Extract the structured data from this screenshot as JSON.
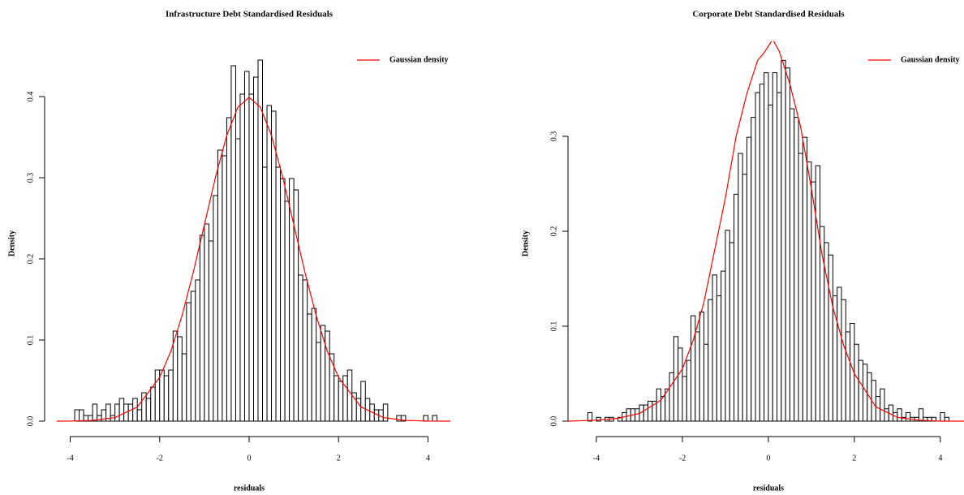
{
  "chart_data": [
    {
      "type": "histogram",
      "title": "Infrastructure Debt Standardised Residuals",
      "xlabel": "residuals",
      "ylabel": "Density",
      "color": "#000000",
      "bins": [
        -3.9,
        -3.8,
        -3.7,
        -3.6,
        -3.5,
        -3.4,
        -3.3,
        -3.2,
        -3.1,
        -3.0,
        -2.9,
        -2.8,
        -2.7,
        -2.6,
        -2.5,
        -2.4,
        -2.3,
        -2.2,
        -2.1,
        -2.0,
        -1.9,
        -1.8,
        -1.7,
        -1.6,
        -1.5,
        -1.4,
        -1.3,
        -1.2,
        -1.1,
        -1.0,
        -0.9,
        -0.8,
        -0.7,
        -0.6,
        -0.5,
        -0.4,
        -0.3,
        -0.2,
        -0.1,
        0,
        0.1,
        0.2,
        0.3,
        0.4,
        0.5,
        0.6,
        0.7,
        0.8,
        0.9,
        1.0,
        1.1,
        1.2,
        1.3,
        1.4,
        1.5,
        1.6,
        1.7,
        1.8,
        1.9,
        2.0,
        2.1,
        2.2,
        2.3,
        2.4,
        2.5,
        2.6,
        2.7,
        2.8,
        2.9,
        3.0,
        3.1,
        3.2,
        3.3,
        3.4,
        3.5,
        3.6,
        3.7,
        3.8,
        3.9,
        4.0,
        4.1,
        4.2
      ],
      "values": [
        0.014,
        0.014,
        0.007,
        0.007,
        0.021,
        0.007,
        0.014,
        0.021,
        0.007,
        0.021,
        0.028,
        0.021,
        0.021,
        0.028,
        0.014,
        0.035,
        0.028,
        0.042,
        0.063,
        0.063,
        0.056,
        0.063,
        0.111,
        0.104,
        0.083,
        0.146,
        0.16,
        0.174,
        0.229,
        0.243,
        0.222,
        0.278,
        0.334,
        0.327,
        0.374,
        0.438,
        0.348,
        0.403,
        0.431,
        0.403,
        0.424,
        0.445,
        0.313,
        0.389,
        0.382,
        0.313,
        0.299,
        0.271,
        0.299,
        0.285,
        0.18,
        0.174,
        0.132,
        0.139,
        0.097,
        0.118,
        0.111,
        0.083,
        0.056,
        0.049,
        0.056,
        0.063,
        0.035,
        0.028,
        0.049,
        0.028,
        0.021,
        0.014,
        0.014,
        0.021,
        0,
        0,
        0.007,
        0.007,
        0,
        0,
        0,
        0,
        0.007,
        0,
        0.007
      ],
      "series": [
        {
          "name": "Gaussian density",
          "color": "#ff0000",
          "x": [
            -4.3,
            -4,
            -3.5,
            -3,
            -2.5,
            -2,
            -1.75,
            -1.5,
            -1.25,
            -1,
            -0.75,
            -0.5,
            -0.25,
            0,
            0.25,
            0.5,
            0.75,
            1,
            1.25,
            1.5,
            1.75,
            2,
            2.5,
            3,
            3.5,
            4,
            4.5
          ],
          "values": [
            0,
            0.0001,
            0.0009,
            0.0044,
            0.0175,
            0.054,
            0.086,
            0.13,
            0.183,
            0.242,
            0.301,
            0.352,
            0.387,
            0.399,
            0.387,
            0.352,
            0.301,
            0.242,
            0.183,
            0.13,
            0.086,
            0.054,
            0.0175,
            0.0044,
            0.0009,
            0.0001,
            0
          ]
        }
      ],
      "xlim": [
        -4.3,
        4.5
      ],
      "ylim": [
        -0.018,
        0.468
      ],
      "xticks": [
        -4,
        -2,
        0,
        2,
        4
      ],
      "yticks": [
        {
          "value": 0,
          "label": "0.0"
        },
        0.1,
        0.2,
        0.3,
        0.4
      ],
      "legend": "upper right"
    },
    {
      "type": "histogram",
      "title": "Corporate Debt Standardised Residuals",
      "xlabel": "residuals",
      "ylabel": "Density",
      "color": "#000000",
      "bins": [
        -4.2,
        -4.1,
        -4.0,
        -3.9,
        -3.8,
        -3.7,
        -3.6,
        -3.5,
        -3.4,
        -3.3,
        -3.2,
        -3.1,
        -3.0,
        -2.9,
        -2.8,
        -2.7,
        -2.6,
        -2.5,
        -2.4,
        -2.3,
        -2.2,
        -2.1,
        -2.0,
        -1.9,
        -1.8,
        -1.7,
        -1.6,
        -1.5,
        -1.4,
        -1.3,
        -1.2,
        -1.1,
        -1.0,
        -0.9,
        -0.8,
        -0.7,
        -0.6,
        -0.5,
        -0.4,
        -0.3,
        -0.2,
        -0.1,
        0,
        0.1,
        0.2,
        0.3,
        0.4,
        0.5,
        0.6,
        0.7,
        0.8,
        0.9,
        1.0,
        1.1,
        1.2,
        1.3,
        1.4,
        1.5,
        1.6,
        1.7,
        1.8,
        1.9,
        2.0,
        2.1,
        2.2,
        2.3,
        2.4,
        2.5,
        2.6,
        2.7,
        2.8,
        2.9,
        3.0,
        3.1,
        3.2,
        3.3,
        3.4,
        3.5,
        3.6,
        3.7,
        3.8,
        3.9,
        4.0,
        4.1,
        4.2
      ],
      "values": [
        0.009,
        0,
        0.004,
        0,
        0.004,
        0.004,
        0,
        0.004,
        0.009,
        0.013,
        0.013,
        0.013,
        0.017,
        0.017,
        0.021,
        0.021,
        0.034,
        0.026,
        0.034,
        0.051,
        0.089,
        0.077,
        0.047,
        0.064,
        0.111,
        0.094,
        0.115,
        0.081,
        0.128,
        0.154,
        0.132,
        0.158,
        0.201,
        0.188,
        0.239,
        0.282,
        0.26,
        0.299,
        0.32,
        0.346,
        0.355,
        0.367,
        0.333,
        0.367,
        0.346,
        0.38,
        0.372,
        0.329,
        0.32,
        0.282,
        0.299,
        0.273,
        0.252,
        0.269,
        0.205,
        0.188,
        0.175,
        0.132,
        0.141,
        0.128,
        0.094,
        0.103,
        0.081,
        0.064,
        0.06,
        0.051,
        0.043,
        0.026,
        0.034,
        0.013,
        0.017,
        0.009,
        0.013,
        0.004,
        0.009,
        0.004,
        0.004,
        0.013,
        0.004,
        0.004,
        0.004,
        0,
        0.009,
        0.004
      ],
      "series": [
        {
          "name": "Gaussian density",
          "color": "#ff0000",
          "x": [
            -4.66,
            -4,
            -3.5,
            -3,
            -2.5,
            -2,
            -1.75,
            -1.5,
            -1.25,
            -1,
            -0.75,
            -0.5,
            -0.25,
            -0.1,
            0,
            0.1,
            0.25,
            0.5,
            0.75,
            1,
            1.25,
            1.5,
            1.75,
            2,
            2.5,
            3,
            3.5,
            4,
            4.55
          ],
          "values": [
            0,
            0.001,
            0.003,
            0.008,
            0.022,
            0.055,
            0.085,
            0.125,
            0.18,
            0.235,
            0.3,
            0.345,
            0.38,
            0.388,
            0.395,
            0.402,
            0.39,
            0.355,
            0.31,
            0.245,
            0.175,
            0.12,
            0.08,
            0.05,
            0.015,
            0.004,
            0.001,
            0,
            0
          ]
        }
      ],
      "xlim": [
        -4.66,
        4.55
      ],
      "ylim": [
        -0.0154,
        0.4
      ],
      "xticks": [
        -4,
        -2,
        0,
        2,
        4
      ],
      "yticks": [
        {
          "value": 0,
          "label": "0.0"
        },
        0.1,
        0.2,
        0.3
      ],
      "legend": "upper right"
    }
  ]
}
